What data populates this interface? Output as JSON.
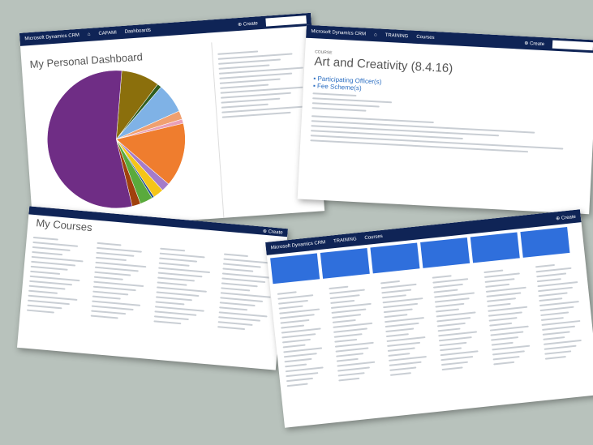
{
  "app_name": "Microsoft Dynamics CRM",
  "create_label": "Create",
  "dashboard": {
    "area": "CAFAMI",
    "section": "Dashboards",
    "title": "My Personal Dashboard",
    "pie": {
      "type": "pie",
      "slices": [
        {
          "color": "#8b6f0c",
          "value": 9
        },
        {
          "color": "#2e5d1e",
          "value": 1
        },
        {
          "color": "#7fb2e6",
          "value": 7
        },
        {
          "color": "#f0a070",
          "value": 2
        },
        {
          "color": "#e9a0b8",
          "value": 1
        },
        {
          "color": "#ef7d2e",
          "value": 15
        },
        {
          "color": "#a57cc9",
          "value": 2
        },
        {
          "color": "#f5c518",
          "value": 2.5
        },
        {
          "color": "#1f4e8c",
          "value": 0.5
        },
        {
          "color": "#5aaa3c",
          "value": 3
        },
        {
          "color": "#a0410d",
          "value": 2
        },
        {
          "color": "#6f2d85",
          "value": 55
        }
      ]
    }
  },
  "course": {
    "area": "TRAINING",
    "section": "Courses",
    "label": "COURSE",
    "title": "Art and Creativity (8.4.16)",
    "links": [
      "Participating Officer(s)",
      "Fee Scheme(s)"
    ]
  },
  "courses_list": {
    "title": "My Courses"
  },
  "training": {
    "area": "TRAINING",
    "section": "Courses"
  },
  "colors": {
    "nav": "#0f2456",
    "tile": "#2f6fdc",
    "background": "#b8c2bc"
  }
}
